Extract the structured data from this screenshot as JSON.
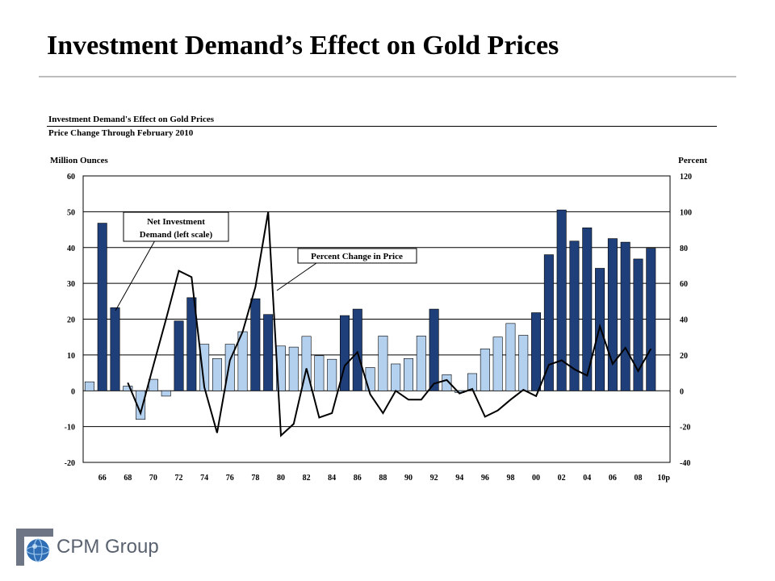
{
  "page": {
    "title": "Investment Demand’s Effect on Gold Prices",
    "logo_text": "CPM Group"
  },
  "chart_data": {
    "type": "bar",
    "title": "Investment Demand's Effect on Gold Prices",
    "subtitle": "Price Change Through February 2010",
    "ylabel_left": "Million Ounces",
    "ylabel_right": "Percent",
    "ylim_left": [
      -20,
      60
    ],
    "ylim_right": [
      -40,
      120
    ],
    "yticks_left": [
      -20,
      -10,
      0,
      10,
      20,
      30,
      40,
      50,
      60
    ],
    "yticks_right": [
      -40,
      -20,
      0,
      20,
      40,
      60,
      80,
      100,
      120
    ],
    "grid": true,
    "x_tick_labels": [
      "66",
      "68",
      "70",
      "72",
      "74",
      "76",
      "78",
      "80",
      "82",
      "84",
      "86",
      "88",
      "90",
      "92",
      "94",
      "96",
      "98",
      "00",
      "02",
      "04",
      "06",
      "08",
      "10p"
    ],
    "categories": [
      "1965",
      "1966",
      "1967",
      "1968",
      "1969",
      "1970",
      "1971",
      "1972",
      "1973",
      "1974",
      "1975",
      "1976",
      "1977",
      "1978",
      "1979",
      "1980",
      "1981",
      "1982",
      "1983",
      "1984",
      "1985",
      "1986",
      "1987",
      "1988",
      "1989",
      "1990",
      "1991",
      "1992",
      "1993",
      "1994",
      "1995",
      "1996",
      "1997",
      "1998",
      "1999",
      "2000",
      "2001",
      "2002",
      "2003",
      "2004",
      "2005",
      "2006",
      "2007",
      "2008",
      "2009",
      "2010p"
    ],
    "series": [
      {
        "name": "Net Investment Demand (left scale)",
        "type": "bar",
        "axis": "left",
        "values": [
          2.5,
          46.8,
          23.2,
          1.3,
          -8.0,
          3.2,
          -1.5,
          19.5,
          26.0,
          13.0,
          9.0,
          13.0,
          16.5,
          25.7,
          21.3,
          12.5,
          12.2,
          15.2,
          9.8,
          8.8,
          21.0,
          22.8,
          6.5,
          15.3,
          7.5,
          9.0,
          15.3,
          22.8,
          4.5,
          -0.5,
          4.8,
          11.7,
          15.0,
          18.8,
          15.5,
          21.8,
          38.0,
          50.5,
          41.8,
          45.5,
          34.2,
          42.5,
          41.5,
          36.8,
          39.8,
          null
        ],
        "highlight": [
          false,
          true,
          true,
          false,
          false,
          false,
          false,
          true,
          true,
          false,
          false,
          false,
          false,
          true,
          true,
          false,
          false,
          false,
          false,
          false,
          true,
          true,
          false,
          false,
          false,
          false,
          false,
          true,
          false,
          false,
          false,
          false,
          false,
          false,
          false,
          true,
          true,
          true,
          true,
          true,
          true,
          true,
          true,
          true,
          true,
          false
        ],
        "colors": {
          "highlight": "#1f3f7a",
          "normal": "#b3d0ef"
        }
      },
      {
        "name": "Percent Change in Price",
        "type": "line",
        "axis": "right",
        "values": [
          null,
          null,
          null,
          4.5,
          -12.5,
          14.0,
          40.0,
          67.0,
          63.5,
          2.0,
          -23.5,
          17.0,
          33.0,
          58.0,
          100.0,
          -25.0,
          -18.5,
          12.5,
          -15.0,
          -12.5,
          14.0,
          21.5,
          -2.0,
          -12.5,
          0.0,
          -5.0,
          -5.0,
          4.0,
          6.0,
          -1.5,
          1.0,
          -14.5,
          -11.0,
          -5.0,
          0.5,
          -3.0,
          14.5,
          17.0,
          12.0,
          8.5,
          36.0,
          15.0,
          24.0,
          11.0,
          23.5,
          null
        ],
        "color": "#000000"
      }
    ],
    "annotations": {
      "bar_label": "Net Investment Demand (left scale)",
      "bar_label_line1": "Net Investment",
      "bar_label_line2": "Demand (left scale)",
      "line_label": "Percent Change in Price"
    },
    "tick_text": {
      "left": [
        "-20",
        "-10",
        "0",
        "10",
        "20",
        "30",
        "40",
        "50",
        "60"
      ],
      "right": [
        "-40",
        "-20",
        "0",
        "20",
        "40",
        "60",
        "80",
        "100",
        "120"
      ]
    }
  }
}
